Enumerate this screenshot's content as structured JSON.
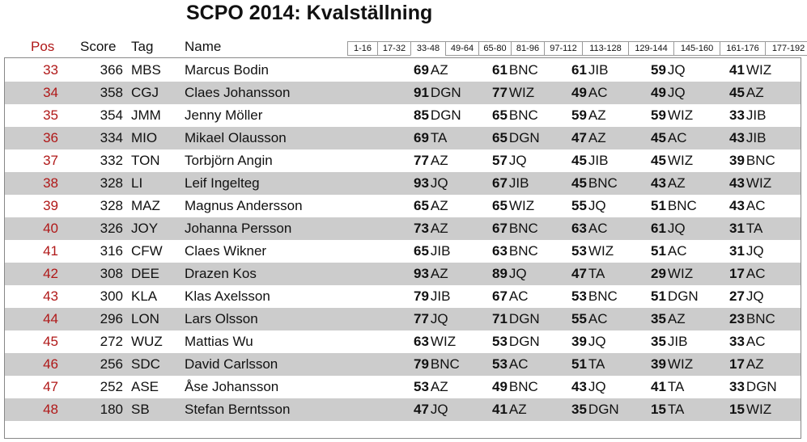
{
  "title": "SCPO 2014: Kvalställning",
  "header": {
    "pos": "Pos",
    "score": "Score",
    "tag": "Tag",
    "name": "Name"
  },
  "tabs": [
    "1-16",
    "17-32",
    "33-48",
    "49-64",
    "65-80",
    "81-96",
    "97-112",
    "113-128",
    "129-144",
    "145-160",
    "161-176",
    "177-192"
  ],
  "active_tab": "33-48",
  "accent_color": "#b01818",
  "rows": [
    {
      "pos": "33",
      "score": "366",
      "tag": "MBS",
      "name": "Marcus Bodin",
      "matches": [
        {
          "s": "69",
          "o": "AZ"
        },
        {
          "s": "61",
          "o": "BNC"
        },
        {
          "s": "61",
          "o": "JIB"
        },
        {
          "s": "59",
          "o": "JQ"
        },
        {
          "s": "41",
          "o": "WIZ"
        }
      ]
    },
    {
      "pos": "34",
      "score": "358",
      "tag": "CGJ",
      "name": "Claes Johansson",
      "matches": [
        {
          "s": "91",
          "o": "DGN"
        },
        {
          "s": "77",
          "o": "WIZ"
        },
        {
          "s": "49",
          "o": "AC"
        },
        {
          "s": "49",
          "o": "JQ"
        },
        {
          "s": "45",
          "o": "AZ"
        }
      ]
    },
    {
      "pos": "35",
      "score": "354",
      "tag": "JMM",
      "name": "Jenny Möller",
      "matches": [
        {
          "s": "85",
          "o": "DGN"
        },
        {
          "s": "65",
          "o": "BNC"
        },
        {
          "s": "59",
          "o": "AZ"
        },
        {
          "s": "59",
          "o": "WIZ"
        },
        {
          "s": "33",
          "o": "JIB"
        }
      ]
    },
    {
      "pos": "36",
      "score": "334",
      "tag": "MIO",
      "name": "Mikael Olausson",
      "matches": [
        {
          "s": "69",
          "o": "TA"
        },
        {
          "s": "65",
          "o": "DGN"
        },
        {
          "s": "47",
          "o": "AZ"
        },
        {
          "s": "45",
          "o": "AC"
        },
        {
          "s": "43",
          "o": "JIB"
        }
      ]
    },
    {
      "pos": "37",
      "score": "332",
      "tag": "TON",
      "name": "Torbjörn Angin",
      "matches": [
        {
          "s": "77",
          "o": "AZ"
        },
        {
          "s": "57",
          "o": "JQ"
        },
        {
          "s": "45",
          "o": "JIB"
        },
        {
          "s": "45",
          "o": "WIZ"
        },
        {
          "s": "39",
          "o": "BNC"
        }
      ]
    },
    {
      "pos": "38",
      "score": "328",
      "tag": "LI",
      "name": "Leif Ingelteg",
      "matches": [
        {
          "s": "93",
          "o": "JQ"
        },
        {
          "s": "67",
          "o": "JIB"
        },
        {
          "s": "45",
          "o": "BNC"
        },
        {
          "s": "43",
          "o": "AZ"
        },
        {
          "s": "43",
          "o": "WIZ"
        }
      ]
    },
    {
      "pos": "39",
      "score": "328",
      "tag": "MAZ",
      "name": "Magnus Andersson",
      "matches": [
        {
          "s": "65",
          "o": "AZ"
        },
        {
          "s": "65",
          "o": "WIZ"
        },
        {
          "s": "55",
          "o": "JQ"
        },
        {
          "s": "51",
          "o": "BNC"
        },
        {
          "s": "43",
          "o": "AC"
        }
      ]
    },
    {
      "pos": "40",
      "score": "326",
      "tag": "JOY",
      "name": "Johanna Persson",
      "matches": [
        {
          "s": "73",
          "o": "AZ"
        },
        {
          "s": "67",
          "o": "BNC"
        },
        {
          "s": "63",
          "o": "AC"
        },
        {
          "s": "61",
          "o": "JQ"
        },
        {
          "s": "31",
          "o": "TA"
        }
      ]
    },
    {
      "pos": "41",
      "score": "316",
      "tag": "CFW",
      "name": "Claes Wikner",
      "matches": [
        {
          "s": "65",
          "o": "JIB"
        },
        {
          "s": "63",
          "o": "BNC"
        },
        {
          "s": "53",
          "o": "WIZ"
        },
        {
          "s": "51",
          "o": "AC"
        },
        {
          "s": "31",
          "o": "JQ"
        }
      ]
    },
    {
      "pos": "42",
      "score": "308",
      "tag": "DEE",
      "name": "Drazen Kos",
      "matches": [
        {
          "s": "93",
          "o": "AZ"
        },
        {
          "s": "89",
          "o": "JQ"
        },
        {
          "s": "47",
          "o": "TA"
        },
        {
          "s": "29",
          "o": "WIZ"
        },
        {
          "s": "17",
          "o": "AC"
        }
      ]
    },
    {
      "pos": "43",
      "score": "300",
      "tag": "KLA",
      "name": "Klas Axelsson",
      "matches": [
        {
          "s": "79",
          "o": "JIB"
        },
        {
          "s": "67",
          "o": "AC"
        },
        {
          "s": "53",
          "o": "BNC"
        },
        {
          "s": "51",
          "o": "DGN"
        },
        {
          "s": "27",
          "o": "JQ"
        }
      ]
    },
    {
      "pos": "44",
      "score": "296",
      "tag": "LON",
      "name": "Lars Olsson",
      "matches": [
        {
          "s": "77",
          "o": "JQ"
        },
        {
          "s": "71",
          "o": "DGN"
        },
        {
          "s": "55",
          "o": "AC"
        },
        {
          "s": "35",
          "o": "AZ"
        },
        {
          "s": "23",
          "o": "BNC"
        }
      ]
    },
    {
      "pos": "45",
      "score": "272",
      "tag": "WUZ",
      "name": "Mattias Wu",
      "matches": [
        {
          "s": "63",
          "o": "WIZ"
        },
        {
          "s": "53",
          "o": "DGN"
        },
        {
          "s": "39",
          "o": "JQ"
        },
        {
          "s": "35",
          "o": "JIB"
        },
        {
          "s": "33",
          "o": "AC"
        }
      ]
    },
    {
      "pos": "46",
      "score": "256",
      "tag": "SDC",
      "name": "David Carlsson",
      "matches": [
        {
          "s": "79",
          "o": "BNC"
        },
        {
          "s": "53",
          "o": "AC"
        },
        {
          "s": "51",
          "o": "TA"
        },
        {
          "s": "39",
          "o": "WIZ"
        },
        {
          "s": "17",
          "o": "AZ"
        }
      ]
    },
    {
      "pos": "47",
      "score": "252",
      "tag": "ASE",
      "name": "Åse Johansson",
      "matches": [
        {
          "s": "53",
          "o": "AZ"
        },
        {
          "s": "49",
          "o": "BNC"
        },
        {
          "s": "43",
          "o": "JQ"
        },
        {
          "s": "41",
          "o": "TA"
        },
        {
          "s": "33",
          "o": "DGN"
        }
      ]
    },
    {
      "pos": "48",
      "score": "180",
      "tag": "SB",
      "name": "Stefan Berntsson",
      "matches": [
        {
          "s": "47",
          "o": "JQ"
        },
        {
          "s": "41",
          "o": "AZ"
        },
        {
          "s": "35",
          "o": "DGN"
        },
        {
          "s": "15",
          "o": "TA"
        },
        {
          "s": "15",
          "o": "WIZ"
        }
      ]
    }
  ]
}
